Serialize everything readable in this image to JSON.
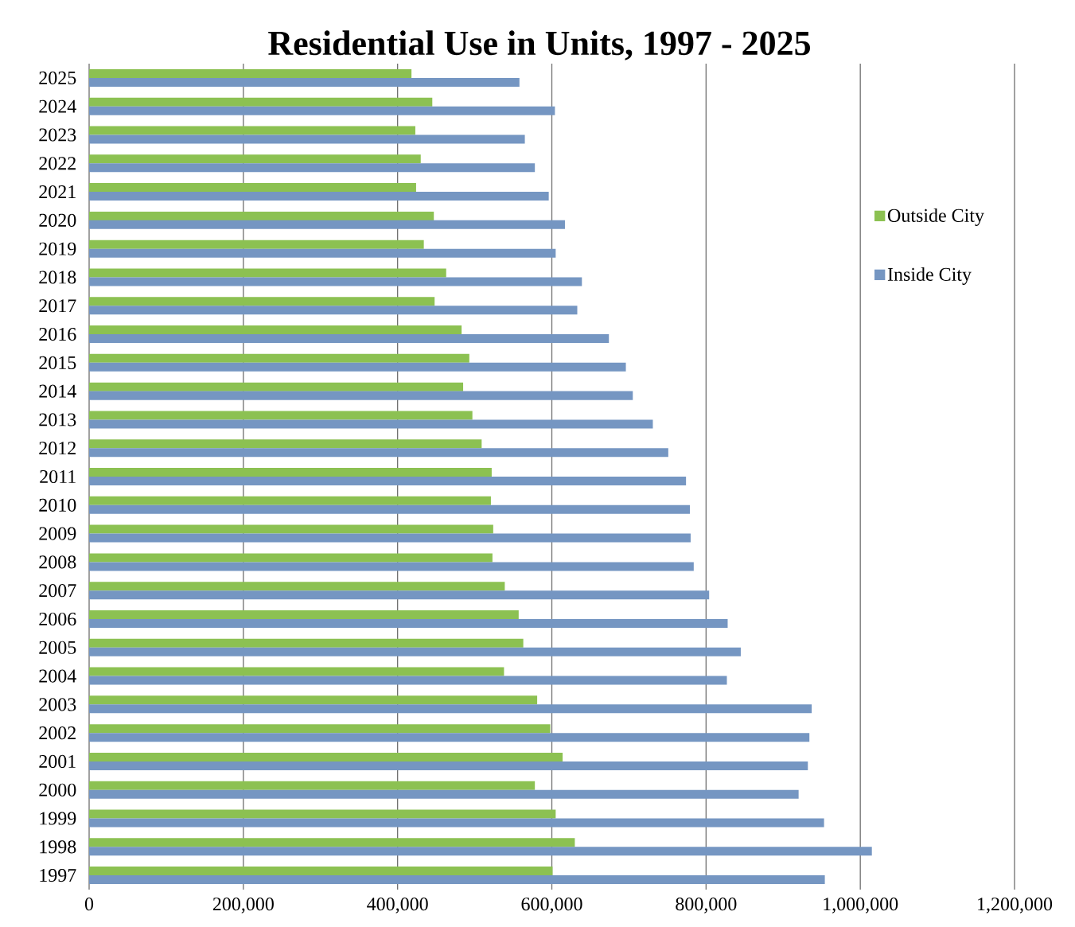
{
  "chart_data": {
    "type": "bar",
    "orientation": "horizontal",
    "title": "Residential Use in Units, 1997 - 2025",
    "categories": [
      "2025",
      "2024",
      "2023",
      "2022",
      "2021",
      "2020",
      "2019",
      "2018",
      "2017",
      "2016",
      "2015",
      "2014",
      "2013",
      "2012",
      "2011",
      "2010",
      "2009",
      "2008",
      "2007",
      "2006",
      "2005",
      "2004",
      "2003",
      "2002",
      "2001",
      "2000",
      "1999",
      "1998",
      "1997"
    ],
    "series": [
      {
        "name": "Outside City",
        "color": "#8cc152",
        "values": [
          418000,
          445000,
          423000,
          430000,
          424000,
          447000,
          434000,
          463000,
          448000,
          483000,
          493000,
          485000,
          497000,
          509000,
          522000,
          521000,
          524000,
          523000,
          539000,
          557000,
          563000,
          538000,
          581000,
          598000,
          614000,
          578000,
          605000,
          630000,
          601000
        ]
      },
      {
        "name": "Inside City",
        "color": "#7596c2",
        "values": [
          558000,
          604000,
          565000,
          578000,
          596000,
          617000,
          605000,
          639000,
          633000,
          674000,
          696000,
          705000,
          731000,
          751000,
          774000,
          779000,
          780000,
          784000,
          804000,
          828000,
          845000,
          827000,
          937000,
          934000,
          932000,
          920000,
          953000,
          1015000,
          954000
        ]
      }
    ],
    "xlim": [
      0,
      1200000
    ],
    "xticks": [
      0,
      {
        "value": 200000,
        "label": "200,000"
      },
      {
        "value": 400000,
        "label": "400,000"
      },
      {
        "value": 600000,
        "label": "600,000"
      },
      {
        "value": 800000,
        "label": "800,000"
      },
      {
        "value": 1000000,
        "label": "1,000,000"
      },
      {
        "value": 1200000,
        "label": "1,200,000"
      }
    ],
    "grid": "x",
    "legend": "right"
  }
}
